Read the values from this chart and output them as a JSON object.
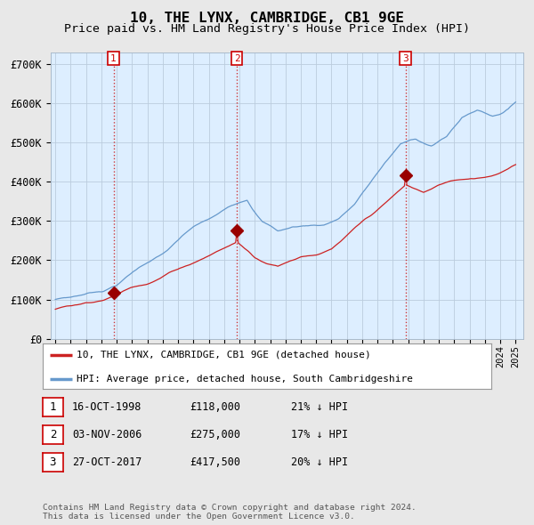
{
  "title": "10, THE LYNX, CAMBRIDGE, CB1 9GE",
  "subtitle": "Price paid vs. HM Land Registry's House Price Index (HPI)",
  "ylim": [
    0,
    730000
  ],
  "yticks": [
    0,
    100000,
    200000,
    300000,
    400000,
    500000,
    600000,
    700000
  ],
  "ytick_labels": [
    "£0",
    "£100K",
    "£200K",
    "£300K",
    "£400K",
    "£500K",
    "£600K",
    "£700K"
  ],
  "xlim_start": 1994.7,
  "xlim_end": 2025.5,
  "sale_dates": [
    1998.79,
    2006.84,
    2017.82
  ],
  "sale_prices": [
    118000,
    275000,
    417500
  ],
  "sale_labels": [
    "1",
    "2",
    "3"
  ],
  "vline_color": "#cc2222",
  "dot_color": "#990000",
  "line_color_price": "#cc2222",
  "line_color_hpi": "#6699cc",
  "plot_bg_color": "#ddeeff",
  "background_color": "#e8e8e8",
  "grid_color": "#bbccdd",
  "legend_price_label": "10, THE LYNX, CAMBRIDGE, CB1 9GE (detached house)",
  "legend_hpi_label": "HPI: Average price, detached house, South Cambridgeshire",
  "table_rows": [
    {
      "num": "1",
      "date": "16-OCT-1998",
      "price": "£118,000",
      "hpi": "21% ↓ HPI"
    },
    {
      "num": "2",
      "date": "03-NOV-2006",
      "price": "£275,000",
      "hpi": "17% ↓ HPI"
    },
    {
      "num": "3",
      "date": "27-OCT-2017",
      "price": "£417,500",
      "hpi": "20% ↓ HPI"
    }
  ],
  "footnote": "Contains HM Land Registry data © Crown copyright and database right 2024.\nThis data is licensed under the Open Government Licence v3.0.",
  "hpi_anchors_x": [
    1995.0,
    1996.0,
    1997.0,
    1998.0,
    1999.0,
    2000.0,
    2001.0,
    2002.0,
    2003.0,
    2004.0,
    2005.0,
    2006.0,
    2007.5,
    2008.5,
    2009.5,
    2010.5,
    2011.5,
    2012.5,
    2013.5,
    2014.5,
    2015.5,
    2016.5,
    2017.5,
    2018.5,
    2019.5,
    2020.5,
    2021.5,
    2022.5,
    2023.5,
    2024.5,
    2025.0
  ],
  "hpi_anchors_y": [
    100000,
    105000,
    115000,
    125000,
    145000,
    175000,
    205000,
    225000,
    255000,
    285000,
    300000,
    320000,
    360000,
    310000,
    285000,
    295000,
    300000,
    305000,
    325000,
    360000,
    410000,
    465000,
    510000,
    520000,
    510000,
    530000,
    580000,
    600000,
    590000,
    610000,
    630000
  ],
  "price_anchors_x": [
    1995.0,
    1997.0,
    1998.79,
    2001.0,
    2003.0,
    2005.0,
    2006.84,
    2008.0,
    2009.5,
    2011.0,
    2013.0,
    2015.0,
    2016.5,
    2017.82,
    2019.0,
    2021.0,
    2023.0,
    2025.0
  ],
  "price_anchors_y": [
    75000,
    95000,
    118000,
    160000,
    200000,
    240000,
    275000,
    240000,
    225000,
    255000,
    275000,
    330000,
    375000,
    417500,
    400000,
    430000,
    450000,
    480000
  ]
}
